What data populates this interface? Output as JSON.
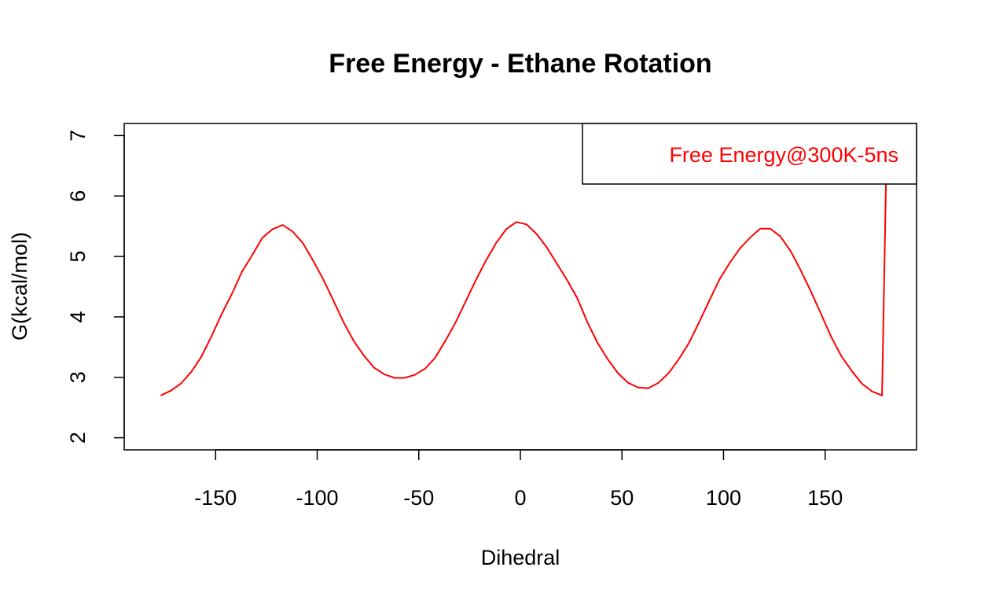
{
  "chart_data": {
    "type": "line",
    "title": "Free Energy - Ethane Rotation",
    "xlabel": "Dihedral",
    "ylabel": "G(kcal/mol)",
    "xlim": [
      -195,
      195
    ],
    "ylim": [
      1.8,
      7.2
    ],
    "x_ticks": [
      -150,
      -100,
      -50,
      0,
      50,
      100,
      150
    ],
    "y_ticks": [
      2,
      3,
      4,
      5,
      6,
      7
    ],
    "grid": false,
    "legend_position": "top-right",
    "series": [
      {
        "name": "Free Energy@300K-5ns",
        "color": "#ff0000",
        "x": [
          -177,
          -172,
          -167,
          -162,
          -157,
          -152,
          -147,
          -142,
          -137,
          -132,
          -127,
          -122,
          -117,
          -112,
          -107,
          -102,
          -97,
          -92,
          -87,
          -82,
          -77,
          -72,
          -67,
          -62,
          -57,
          -52,
          -47,
          -42,
          -37,
          -32,
          -27,
          -22,
          -17,
          -12,
          -7,
          -2,
          3,
          8,
          13,
          18,
          23,
          28,
          33,
          38,
          43,
          48,
          53,
          58,
          63,
          68,
          73,
          78,
          83,
          88,
          93,
          98,
          103,
          108,
          113,
          118,
          123,
          128,
          133,
          138,
          143,
          148,
          153,
          158,
          163,
          168,
          173,
          178,
          180
        ],
        "values": [
          2.7,
          2.78,
          2.9,
          3.09,
          3.34,
          3.68,
          4.05,
          4.38,
          4.75,
          5.02,
          5.31,
          5.45,
          5.52,
          5.41,
          5.22,
          4.93,
          4.62,
          4.27,
          3.91,
          3.6,
          3.36,
          3.16,
          3.05,
          2.99,
          2.99,
          3.04,
          3.14,
          3.32,
          3.6,
          3.9,
          4.25,
          4.6,
          4.93,
          5.22,
          5.45,
          5.57,
          5.53,
          5.37,
          5.15,
          4.88,
          4.61,
          4.31,
          3.91,
          3.57,
          3.3,
          3.07,
          2.91,
          2.83,
          2.82,
          2.91,
          3.07,
          3.3,
          3.57,
          3.91,
          4.27,
          4.62,
          4.89,
          5.13,
          5.31,
          5.46,
          5.46,
          5.33,
          5.09,
          4.77,
          4.42,
          4.05,
          3.67,
          3.35,
          3.11,
          2.9,
          2.77,
          2.7,
          6.3
        ]
      }
    ]
  }
}
